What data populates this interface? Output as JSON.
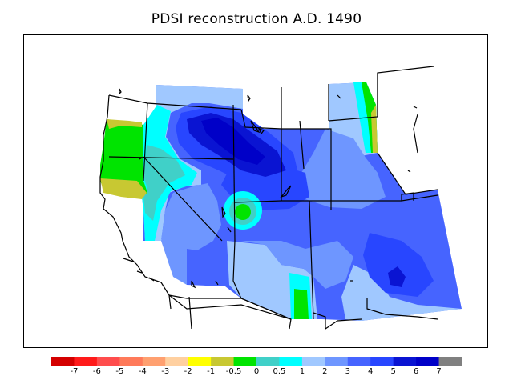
{
  "title": "PDSI reconstruction A.D. 1490",
  "colorbar": {
    "labels": [
      "-7",
      "-6",
      "-5",
      "-4",
      "-3",
      "-2",
      "-1",
      "-0.5",
      "0",
      "0.5",
      "1",
      "2",
      "3",
      "4",
      "5",
      "6",
      "7"
    ],
    "colors": [
      "#d40000",
      "#ff1a1a",
      "#ff4d4d",
      "#ff7a5a",
      "#ffa070",
      "#ffd0a0",
      "#ffff00",
      "#c8c832",
      "#00e400",
      "#40d0c8",
      "#00ffff",
      "#a0c8ff",
      "#6e96ff",
      "#4664ff",
      "#2846ff",
      "#0a14d2",
      "#0000c8",
      "#808080"
    ]
  },
  "map": {
    "region": "western United States",
    "palette": {
      "very_wet": "#0000c8",
      "wet_dark": "#0a14d2",
      "wet": "#2846ff",
      "moist": "#4664ff",
      "moderate": "#6e96ff",
      "light": "#a0c8ff",
      "cyan": "#00ffff",
      "teal": "#40d0c8",
      "green": "#00e400",
      "olive": "#c8c832"
    }
  }
}
